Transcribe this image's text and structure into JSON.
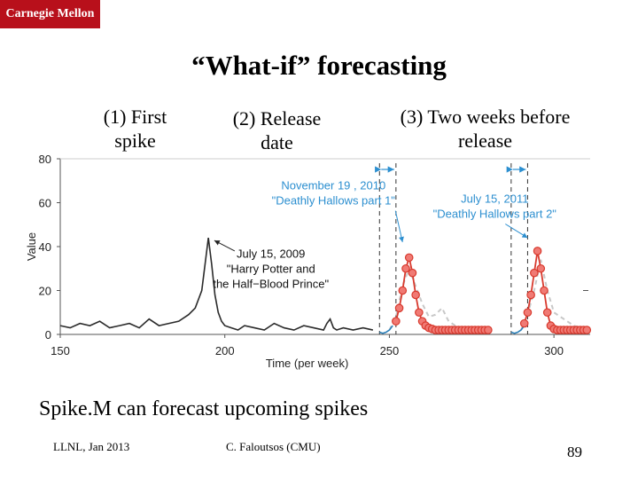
{
  "header": {
    "logo_text": "Carnegie Mellon"
  },
  "slide": {
    "title": "“What-if” forecasting",
    "annotations": [
      {
        "line1": "(1) First",
        "line2": "spike"
      },
      {
        "line1": "(2) Release",
        "line2": "date"
      },
      {
        "line1": "(3) Two weeks before",
        "line2": "release"
      }
    ],
    "caption": "Spike.M can forecast upcoming spikes"
  },
  "footer": {
    "left": "LLNL, Jan 2013",
    "center": "C. Faloutsos (CMU)",
    "page": "89"
  },
  "colors": {
    "logo_bg": "#b8101b",
    "observed": "#2b2b2b",
    "forecast": "#d83a2e",
    "marker_fill": "#f07a74",
    "prefit": "#2a7fb8",
    "annotation_blue": "#2c8fd0",
    "dashed_gray": "#c8c8c8"
  },
  "chart_data": {
    "type": "line",
    "xlabel": "Time (per week)",
    "ylabel": "Value",
    "xlim": [
      150,
      311
    ],
    "ylim": [
      0,
      80
    ],
    "xticks": [
      150,
      200,
      250,
      300
    ],
    "yticks": [
      0,
      20,
      40,
      60,
      80
    ],
    "series": [
      {
        "name": "observed",
        "x": [
          150,
          153,
          156,
          159,
          162,
          165,
          168,
          171,
          174,
          177,
          180,
          183,
          186,
          189,
          191,
          193,
          195,
          196,
          197,
          198,
          199,
          200,
          202,
          204,
          206,
          209,
          212,
          215,
          218,
          221,
          224,
          227,
          230,
          231,
          232,
          233,
          234,
          236,
          239,
          242,
          245
        ],
        "y": [
          4,
          3,
          5,
          4,
          6,
          3,
          4,
          5,
          3,
          7,
          4,
          5,
          6,
          9,
          12,
          20,
          44,
          32,
          18,
          10,
          6,
          4,
          3,
          2,
          4,
          3,
          2,
          5,
          3,
          2,
          4,
          3,
          2,
          5,
          7,
          3,
          2,
          3,
          2,
          3,
          2
        ]
      },
      {
        "name": "prefit-release-1",
        "x": [
          247,
          248,
          249,
          250,
          251
        ],
        "y": [
          1,
          0.5,
          1,
          2,
          4
        ]
      },
      {
        "name": "prefit-release-2",
        "x": [
          287,
          288,
          289,
          290,
          291
        ],
        "y": [
          1,
          0.5,
          1,
          2,
          4
        ]
      },
      {
        "name": "forecast-release-1",
        "x": [
          252,
          253,
          254,
          255,
          256,
          257,
          258,
          259,
          260,
          261,
          262,
          263,
          264,
          265,
          266,
          267,
          268,
          269,
          270,
          271,
          272,
          273,
          274,
          275,
          276,
          277,
          278,
          279,
          280
        ],
        "y": [
          6,
          12,
          20,
          30,
          35,
          28,
          18,
          10,
          6,
          4,
          3,
          2.5,
          2,
          2,
          2,
          2,
          2,
          2,
          2,
          2,
          2,
          2,
          2,
          2,
          2,
          2,
          2,
          2,
          2
        ]
      },
      {
        "name": "forecast-release-2",
        "x": [
          291,
          292,
          293,
          294,
          295,
          296,
          297,
          298,
          299,
          300,
          301,
          302,
          303,
          304,
          305,
          306,
          307,
          308,
          309,
          310
        ],
        "y": [
          5,
          10,
          18,
          28,
          38,
          30,
          20,
          10,
          4,
          2.5,
          2,
          2,
          2,
          2,
          2,
          2,
          2,
          2,
          2,
          2
        ]
      },
      {
        "name": "truth-dashed-1",
        "x": [
          250,
          252,
          254,
          256,
          258,
          260,
          262,
          264,
          266,
          268,
          270,
          272,
          274,
          276,
          278,
          280
        ],
        "y": [
          2,
          8,
          22,
          30,
          22,
          14,
          8,
          9,
          12,
          6,
          4,
          3,
          2,
          2,
          2,
          2
        ]
      },
      {
        "name": "truth-dashed-2",
        "x": [
          290,
          292,
          294,
          296,
          298,
          300,
          302,
          304,
          306,
          308,
          310
        ],
        "y": [
          2,
          9,
          20,
          34,
          20,
          10,
          8,
          6,
          4,
          3,
          2
        ]
      }
    ],
    "release_dates": [
      247,
      287
    ],
    "forecast_starts": [
      252,
      292
    ],
    "annotations": [
      {
        "text_line1": "November 19 , 2010",
        "text_line2": "\"Deathly Hallows part 1\"",
        "x": 233,
        "y": 66
      },
      {
        "text_line1": "July 15, 2011",
        "text_line2": "\"Deathly Hallows part 2\"",
        "x": 282,
        "y": 60
      },
      {
        "text_line1": "July 15, 2009",
        "text_line2": "\"Harry Potter and",
        "text_line3": "the Half−Blood Prince\"",
        "x": 214,
        "y": 35
      }
    ]
  }
}
